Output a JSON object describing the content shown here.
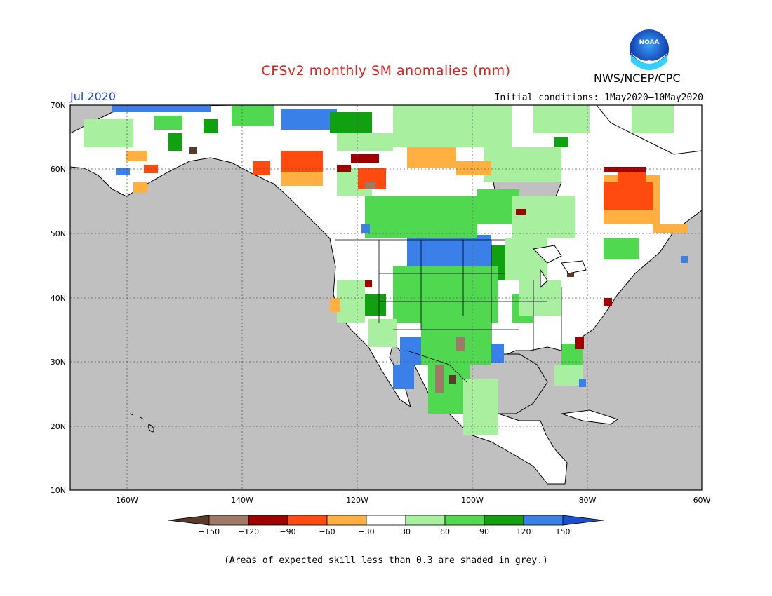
{
  "header": {
    "title": "CFSv2 monthly SM anomalies (mm)",
    "period": "Jul 2020",
    "initial_conditions": "Initial conditions: 1May2020—10May2020",
    "agency": "NWS/NCEP/CPC",
    "logo_text": "NOAA"
  },
  "map": {
    "background_color": "#c0c0c0",
    "lon_range": [
      -172,
      -60
    ],
    "lat_range": [
      10,
      70
    ],
    "lon_ticks": [
      "160W",
      "140W",
      "120W",
      "100W",
      "80W",
      "60W"
    ],
    "lat_ticks": [
      "70N",
      "60N",
      "50N",
      "40N",
      "30N",
      "20N",
      "10N"
    ]
  },
  "colorbar": {
    "labels": [
      "-150",
      "-120",
      "-90",
      "-60",
      "-30",
      "30",
      "60",
      "90",
      "120",
      "150"
    ],
    "colors": [
      "#5a3a28",
      "#a07868",
      "#a00000",
      "#ff4a10",
      "#ffb040",
      "#ffffff",
      "#a8f0a0",
      "#50d850",
      "#10a010",
      "#3a80e8",
      "#1a50d0"
    ]
  },
  "footnote": "(Areas of expected skill less than 0.3 are shaded in grey.)"
}
